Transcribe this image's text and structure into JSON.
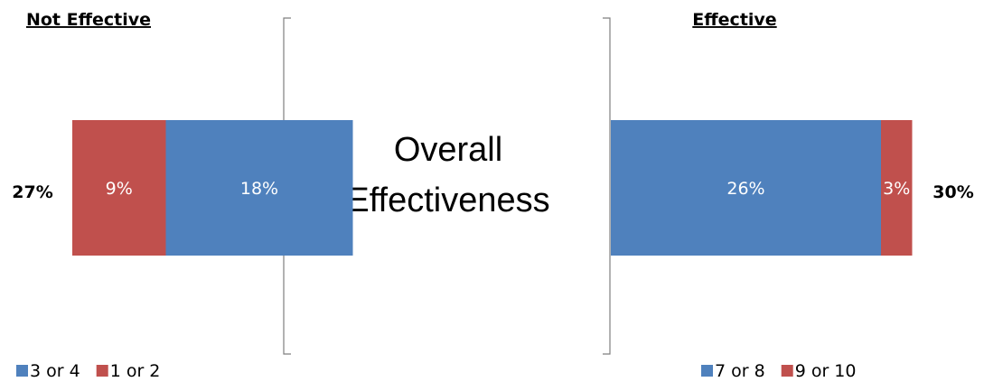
{
  "chart_data": {
    "type": "bar",
    "orientation": "horizontal-stacked",
    "center_title_lines": [
      "Overall",
      "Effectiveness"
    ],
    "colors": {
      "blue": "#4F81BD",
      "red": "#C0504D"
    },
    "groups": [
      {
        "heading": "Not Effective",
        "total_label": "27%",
        "segments": [
          {
            "name": "1 or 2",
            "value": 9,
            "label": "9%",
            "color": "#C0504D"
          },
          {
            "name": "3 or 4",
            "value": 18,
            "label": "18%",
            "color": "#4F81BD"
          }
        ],
        "legend": [
          {
            "name": "3 or 4",
            "color": "#4F81BD"
          },
          {
            "name": "1 or 2",
            "color": "#C0504D"
          }
        ]
      },
      {
        "heading": "Effective",
        "total_label": "30%",
        "segments": [
          {
            "name": "7 or 8",
            "value": 26,
            "label": "26%",
            "color": "#4F81BD"
          },
          {
            "name": "9 or 10",
            "value": 3,
            "label": "3%",
            "color": "#C0504D"
          }
        ],
        "legend": [
          {
            "name": "7 or 8",
            "color": "#4F81BD"
          },
          {
            "name": "9 or 10",
            "color": "#C0504D"
          }
        ]
      }
    ]
  }
}
